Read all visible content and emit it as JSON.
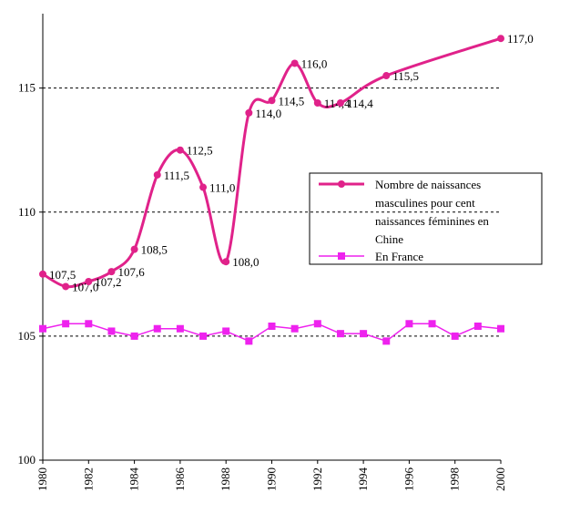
{
  "chart_data": {
    "type": "line",
    "xlim": [
      1980,
      2000
    ],
    "xticks": [
      1980,
      1982,
      1984,
      1986,
      1988,
      1990,
      1992,
      1994,
      1996,
      1998,
      2000
    ],
    "ylim": [
      100,
      118
    ],
    "yticks": [
      100,
      105,
      110,
      115
    ],
    "grid": true,
    "legend": "right",
    "series": [
      {
        "name": "Nombre de naissances masculines pour cent naissances féminines en Chine",
        "color": "#e0228a",
        "smooth": true,
        "x": [
          1980,
          1981,
          1982,
          1983,
          1984,
          1985,
          1986,
          1987,
          1988,
          1989,
          1990,
          1991,
          1992,
          1993,
          1995,
          2000
        ],
        "values": [
          107.5,
          107.0,
          107.2,
          107.6,
          108.5,
          111.5,
          112.5,
          111.0,
          108.0,
          114.0,
          114.5,
          116.0,
          114.4,
          114.4,
          115.5,
          117.0
        ],
        "value_labels": [
          "107,5",
          "107,0",
          "107,2",
          "107,6",
          "108,5",
          "111,5",
          "112,5",
          "111,0",
          "108,0",
          "114,0",
          "114,5",
          "116,0",
          "114,4",
          "114,4",
          "115,5",
          "117,0"
        ]
      },
      {
        "name": "En France",
        "color": "#ee22ee",
        "smooth": false,
        "x": [
          1980,
          1981,
          1982,
          1983,
          1984,
          1985,
          1986,
          1987,
          1988,
          1989,
          1990,
          1991,
          1992,
          1993,
          1994,
          1995,
          1996,
          1997,
          1998,
          1999,
          2000
        ],
        "values": [
          105.3,
          105.5,
          105.5,
          105.2,
          105.0,
          105.3,
          105.3,
          105.0,
          105.2,
          104.8,
          105.4,
          105.3,
          105.5,
          105.1,
          105.1,
          104.8,
          105.5,
          105.5,
          105.0,
          105.4,
          105.3
        ]
      }
    ]
  }
}
